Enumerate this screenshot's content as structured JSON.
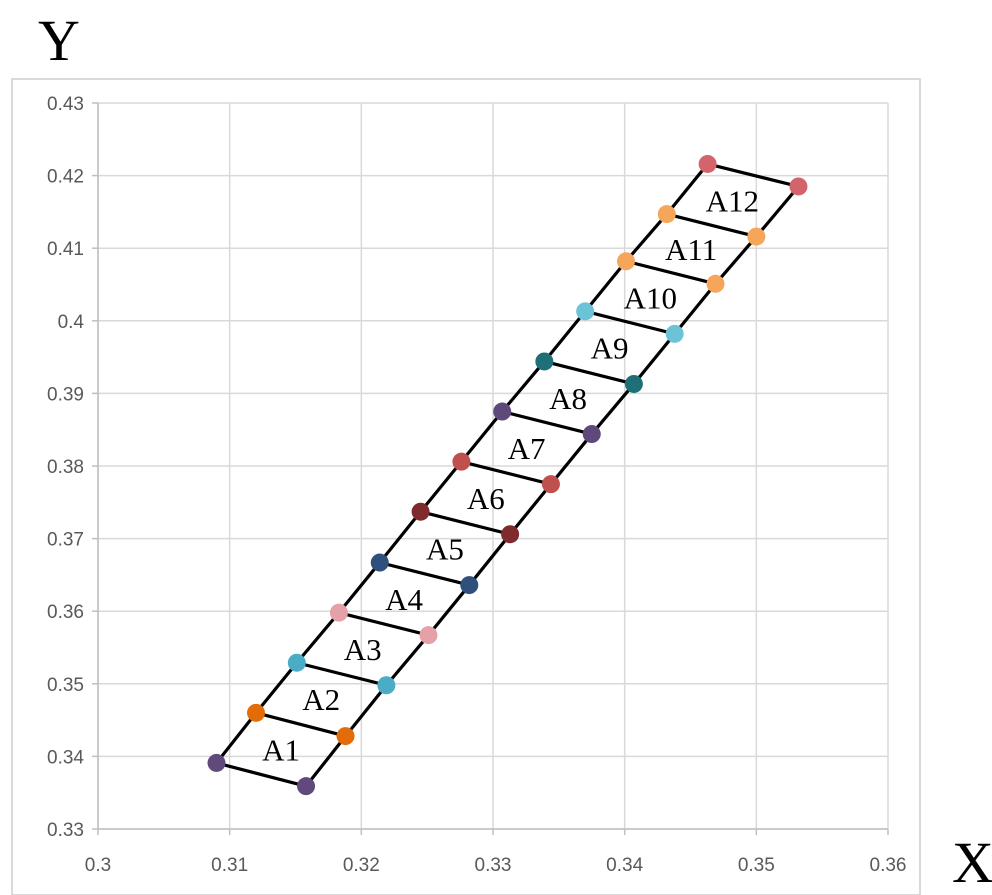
{
  "chart_data": {
    "type": "scatter",
    "xlabel": "X",
    "ylabel": "Y",
    "xlim": [
      0.3,
      0.36
    ],
    "ylim": [
      0.33,
      0.43
    ],
    "x_ticks": [
      "0.3",
      "0.31",
      "0.32",
      "0.33",
      "0.34",
      "0.35",
      "0.36"
    ],
    "y_ticks": [
      "0.33",
      "0.34",
      "0.35",
      "0.36",
      "0.37",
      "0.38",
      "0.39",
      "0.4",
      "0.41",
      "0.42",
      "0.43"
    ],
    "grid": true,
    "series": [
      {
        "label": "A1",
        "color": "#604a7b",
        "points": [
          [
            0.309,
            0.3391
          ],
          [
            0.3158,
            0.3359
          ]
        ]
      },
      {
        "label": "A2",
        "color": "#e36c09",
        "points": [
          [
            0.312,
            0.346
          ],
          [
            0.3188,
            0.3428
          ]
        ]
      },
      {
        "label": "A3",
        "color": "#4bacc6",
        "points": [
          [
            0.3151,
            0.3529
          ],
          [
            0.3219,
            0.3498
          ]
        ]
      },
      {
        "label": "A4",
        "color": "#e6a1a8",
        "points": [
          [
            0.3183,
            0.3598
          ],
          [
            0.3251,
            0.3567
          ]
        ]
      },
      {
        "label": "A5",
        "color": "#2f4f7c",
        "points": [
          [
            0.3214,
            0.3667
          ],
          [
            0.3282,
            0.3636
          ]
        ]
      },
      {
        "label": "A6",
        "color": "#7f2b2e",
        "points": [
          [
            0.3245,
            0.3737
          ],
          [
            0.3313,
            0.3706
          ]
        ]
      },
      {
        "label": "A7",
        "color": "#c0504d",
        "points": [
          [
            0.3276,
            0.3806
          ],
          [
            0.3344,
            0.3775
          ]
        ]
      },
      {
        "label": "A8",
        "color": "#5f497a",
        "points": [
          [
            0.3307,
            0.3875
          ],
          [
            0.3375,
            0.3844
          ]
        ]
      },
      {
        "label": "A9",
        "color": "#1f6f78",
        "points": [
          [
            0.3339,
            0.3944
          ],
          [
            0.3407,
            0.3913
          ]
        ]
      },
      {
        "label": "A10",
        "color": "#6cc2d6",
        "points": [
          [
            0.337,
            0.4013
          ],
          [
            0.3438,
            0.3982
          ]
        ]
      },
      {
        "label": "A11",
        "color": "#f5a65b",
        "points": [
          [
            0.3401,
            0.4082
          ],
          [
            0.3469,
            0.4051
          ]
        ]
      },
      {
        "label": "A12",
        "color": "#f5a65b",
        "points": [
          [
            0.3432,
            0.4147
          ],
          [
            0.35,
            0.4116
          ]
        ]
      },
      {
        "label": "",
        "color": "#d4646b",
        "points": [
          [
            0.3463,
            0.4216
          ],
          [
            0.3532,
            0.4185
          ]
        ]
      }
    ],
    "line_color": "#000000"
  }
}
